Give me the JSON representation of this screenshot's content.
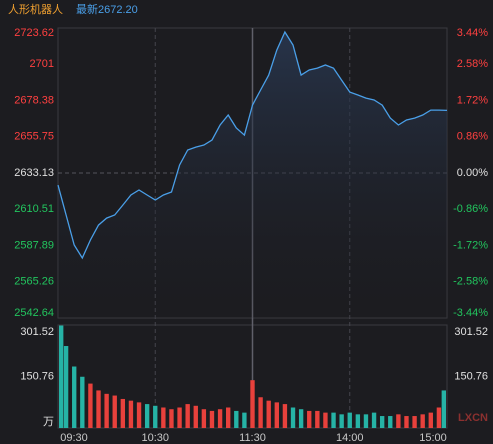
{
  "chart_data": [
    {
      "type": "line",
      "title": "人形机器人",
      "subtitle": "最新2672.20",
      "x": [
        0,
        5,
        10,
        15,
        20,
        25,
        30,
        35,
        40,
        45,
        50,
        55,
        60,
        65,
        70,
        75,
        80,
        85,
        90,
        95,
        100,
        105,
        110,
        115,
        120,
        125,
        130,
        135,
        140,
        145,
        150,
        155,
        160,
        165,
        170,
        175,
        180,
        185,
        190,
        195,
        200,
        205,
        210,
        215,
        220,
        225,
        230,
        235,
        240
      ],
      "series": [
        {
          "name": "人形机器人",
          "color": "#4a9fe8",
          "values": [
            2625.6,
            2606.9,
            2588.2,
            2580.1,
            2591.3,
            2600.6,
            2605.0,
            2606.9,
            2613.1,
            2619.4,
            2622.5,
            2619.4,
            2616.3,
            2619.4,
            2621.3,
            2638.1,
            2647.5,
            2649.3,
            2650.6,
            2653.7,
            2663.1,
            2669.3,
            2661.2,
            2656.8,
            2675.5,
            2684.9,
            2694.2,
            2709.8,
            2721.1,
            2713.0,
            2694.2,
            2697.4,
            2698.6,
            2700.5,
            2698.6,
            2691.1,
            2683.6,
            2681.8,
            2679.9,
            2678.7,
            2675.5,
            2667.4,
            2663.1,
            2666.2,
            2667.4,
            2669.3,
            2672.4,
            2672.4,
            2672.2
          ]
        }
      ],
      "xlim": [
        0,
        240
      ],
      "xticks": [
        {
          "value": 0,
          "label": "09:30"
        },
        {
          "value": 60,
          "label": "10:30"
        },
        {
          "value": 120,
          "label": "11:30"
        },
        {
          "value": 180,
          "label": "14:00"
        },
        {
          "value": 240,
          "label": "15:00"
        }
      ],
      "ylim": [
        2542.64,
        2723.62
      ],
      "yticks": [
        2723.62,
        2701.0,
        2678.38,
        2655.75,
        2633.13,
        2610.51,
        2587.89,
        2565.26,
        2542.64
      ],
      "y2lim": [
        -3.44,
        3.44
      ],
      "y2ticks": [
        {
          "value": 3.44,
          "label": "3.44%"
        },
        {
          "value": 2.58,
          "label": "2.58%"
        },
        {
          "value": 1.72,
          "label": "1.72%"
        },
        {
          "value": 0.86,
          "label": "0.86%"
        },
        {
          "value": 0,
          "label": "0.00%"
        },
        {
          "value": -0.86,
          "label": "-0.86%"
        },
        {
          "value": -1.72,
          "label": "-1.72%"
        },
        {
          "value": -2.58,
          "label": "-2.58%"
        },
        {
          "value": -3.44,
          "label": "-3.44%"
        }
      ],
      "grid": true
    },
    {
      "type": "bar",
      "unit": "万",
      "watermark": "LXCN",
      "x": [
        0,
        5,
        10,
        15,
        20,
        25,
        30,
        35,
        40,
        45,
        50,
        55,
        60,
        65,
        70,
        75,
        80,
        85,
        90,
        95,
        100,
        105,
        110,
        115,
        120,
        125,
        130,
        135,
        140,
        145,
        150,
        155,
        160,
        165,
        170,
        175,
        180,
        185,
        190,
        195,
        200,
        205,
        210,
        215,
        220,
        225,
        230,
        235,
        240
      ],
      "values": [
        300,
        240,
        180,
        150,
        130,
        110,
        100,
        95,
        85,
        80,
        75,
        70,
        65,
        60,
        55,
        60,
        70,
        65,
        55,
        50,
        55,
        60,
        50,
        45,
        140,
        90,
        80,
        75,
        70,
        60,
        55,
        50,
        50,
        45,
        45,
        40,
        45,
        40,
        40,
        45,
        35,
        35,
        40,
        35,
        35,
        40,
        45,
        60,
        110
      ],
      "colors": [
        "#26b3a6",
        "#26b3a6",
        "#26b3a6",
        "#26b3a6",
        "#e8413c",
        "#e8413c",
        "#e8413c",
        "#e8413c",
        "#e8413c",
        "#e8413c",
        "#e8413c",
        "#26b3a6",
        "#26b3a6",
        "#e8413c",
        "#e8413c",
        "#e8413c",
        "#e8413c",
        "#e8413c",
        "#e8413c",
        "#e8413c",
        "#e8413c",
        "#e8413c",
        "#26b3a6",
        "#26b3a6",
        "#e8413c",
        "#e8413c",
        "#e8413c",
        "#e8413c",
        "#e8413c",
        "#26b3a6",
        "#26b3a6",
        "#e8413c",
        "#e8413c",
        "#e8413c",
        "#26b3a6",
        "#26b3a6",
        "#26b3a6",
        "#26b3a6",
        "#26b3a6",
        "#26b3a6",
        "#26b3a6",
        "#26b3a6",
        "#e8413c",
        "#e8413c",
        "#e8413c",
        "#e8413c",
        "#e8413c",
        "#e8413c",
        "#26b3a6"
      ],
      "xlim": [
        0,
        240
      ],
      "ylim": [
        0,
        301.52
      ],
      "yticks": [
        {
          "value": 301.52,
          "label": "301.52"
        },
        {
          "value": 150.76,
          "label": "150.76"
        }
      ]
    }
  ]
}
